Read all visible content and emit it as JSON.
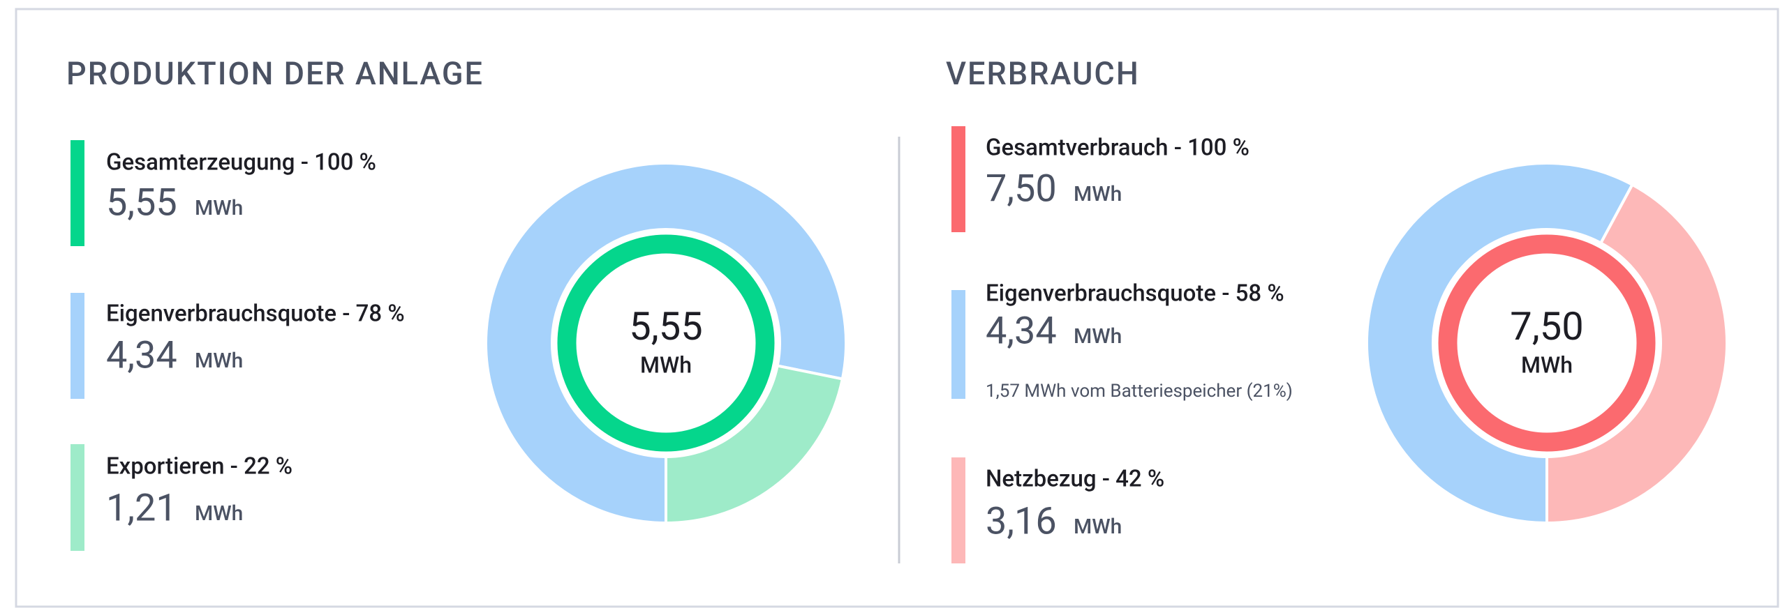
{
  "chart_data": [
    {
      "type": "donut",
      "title": "PRODUKTION DER ANLAGE",
      "unit": "MWh",
      "total": {
        "name": "Gesamterzeugung - 100 %",
        "value": 5.55,
        "value_label": "5,55",
        "color": "#05d68c"
      },
      "categories": [
        "Eigenverbrauchsquote - 78 %",
        "Exportieren - 22 %"
      ],
      "values": [
        4.34,
        1.21
      ],
      "value_labels": [
        "4,34",
        "1,21"
      ],
      "colors": [
        "#a6d2fb",
        "#9eebc9"
      ]
    },
    {
      "type": "donut",
      "title": "VERBRAUCH",
      "unit": "MWh",
      "total": {
        "name": "Gesamtverbrauch - 100 %",
        "value": 7.5,
        "value_label": "7,50",
        "color": "#fb6a6f"
      },
      "categories": [
        "Eigenverbrauchsquote - 58 %",
        "Netzbezug - 42 %"
      ],
      "values": [
        4.34,
        3.16
      ],
      "value_labels": [
        "4,34",
        "3,16"
      ],
      "colors": [
        "#a6d2fb",
        "#fdb8b8"
      ],
      "note": "1,57 MWh vom Batteriespeicher (21%)"
    }
  ]
}
